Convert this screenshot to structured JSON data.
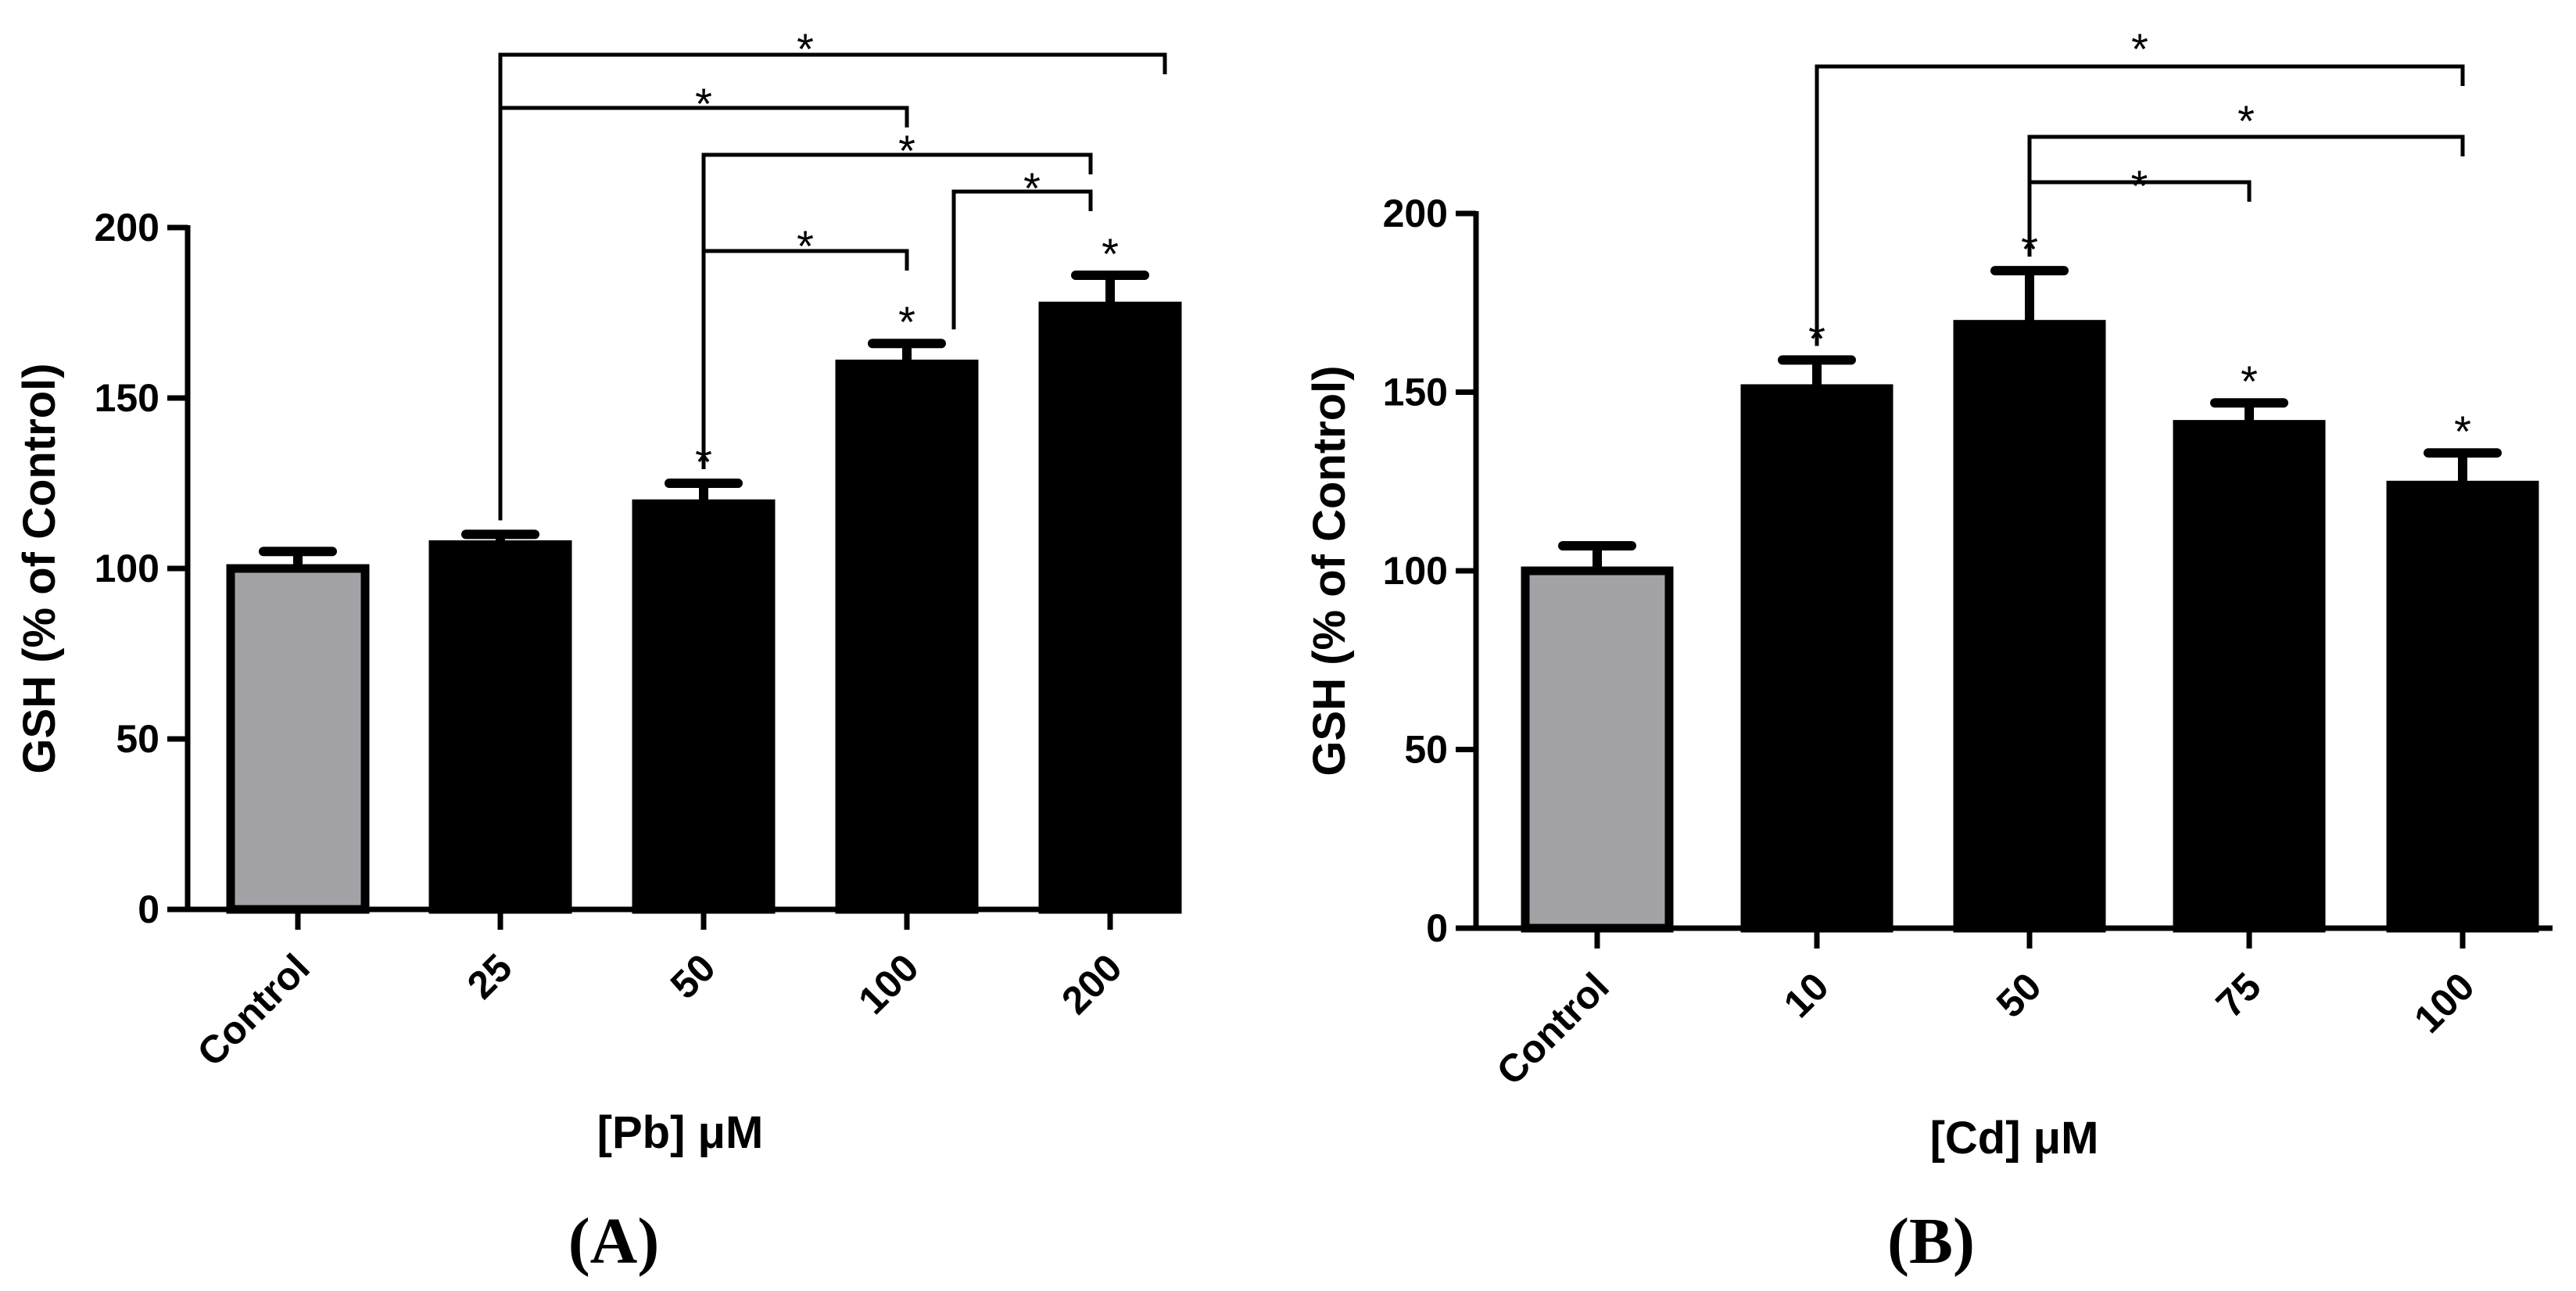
{
  "chart_data": [
    {
      "type": "bar",
      "panel_label": "(A)",
      "title": "",
      "xlabel": "[Pb] μM",
      "ylabel": "GSH (% of Control)",
      "ylim": [
        0,
        200
      ],
      "yticks": [
        "0",
        "50",
        "100",
        "150",
        "200"
      ],
      "categories": [
        "Control",
        "25",
        "50",
        "100",
        "200"
      ],
      "values": [
        100,
        107,
        119,
        160,
        177
      ],
      "errors": [
        5,
        3,
        6,
        6,
        9
      ],
      "bar_colors": [
        "#a3a2a7",
        "#000000",
        "#000000",
        "#000000",
        "#000000"
      ],
      "bar_annotations": [
        "",
        "",
        "*",
        "*",
        "*"
      ],
      "comparisons": [
        {
          "from": 1,
          "to": 4,
          "label": "*"
        },
        {
          "from": 1,
          "to": 3,
          "label": "*"
        },
        {
          "from": 2,
          "to": 4,
          "label": "*"
        },
        {
          "from": 3,
          "to": 4,
          "label": "*"
        },
        {
          "from": 2,
          "to": 3,
          "label": "*"
        }
      ]
    },
    {
      "type": "bar",
      "panel_label": "(B)",
      "title": "",
      "xlabel": "[Cd] μM",
      "ylabel": "GSH (% of Control)",
      "ylim": [
        0,
        200
      ],
      "yticks": [
        "0",
        "50",
        "100",
        "150",
        "200"
      ],
      "categories": [
        "Control",
        "10",
        "50",
        "75",
        "100"
      ],
      "values": [
        100,
        151,
        169,
        141,
        124
      ],
      "errors": [
        7,
        8,
        15,
        6,
        9
      ],
      "bar_colors": [
        "#a3a2a7",
        "#000000",
        "#000000",
        "#000000",
        "#000000"
      ],
      "bar_annotations": [
        "",
        "*",
        "*",
        "*",
        "*"
      ],
      "comparisons": [
        {
          "from": 1,
          "to": 4,
          "label": "*"
        },
        {
          "from": 2,
          "to": 4,
          "label": "*"
        },
        {
          "from": 2,
          "to": 3,
          "label": "*"
        }
      ]
    }
  ]
}
